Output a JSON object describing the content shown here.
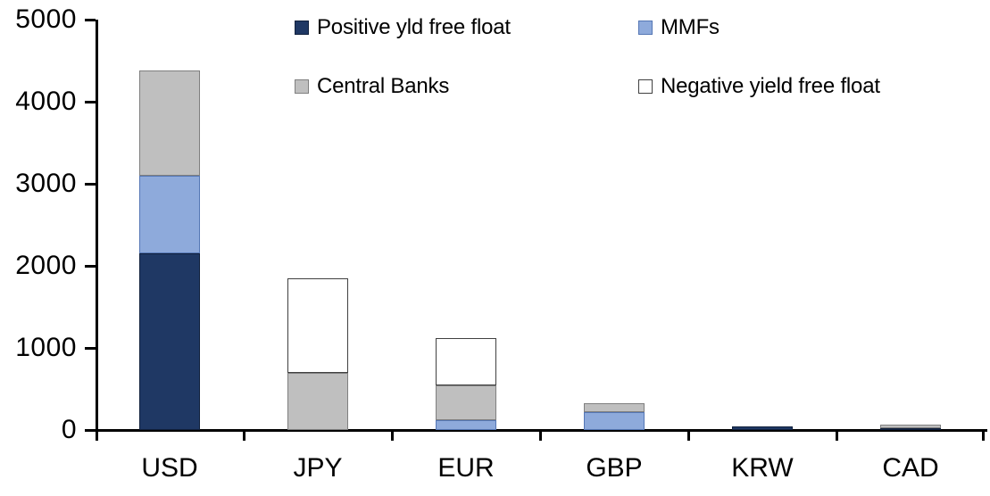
{
  "chart_data": {
    "type": "bar",
    "stacked": true,
    "title": "",
    "xlabel": "",
    "ylabel": "",
    "categories": [
      "USD",
      "JPY",
      "EUR",
      "GBP",
      "KRW",
      "CAD"
    ],
    "series": [
      {
        "name": "Positive yld free float",
        "color": "#1F3864",
        "border_color": "#10203C",
        "values": [
          2150,
          0,
          0,
          0,
          40,
          25
        ]
      },
      {
        "name": "MMFs",
        "color": "#8EAADB",
        "border_color": "#5577B5",
        "values": [
          950,
          0,
          115,
          215,
          0,
          0
        ]
      },
      {
        "name": "Central Banks",
        "color": "#BFBFBF",
        "border_color": "#7F7F7F",
        "values": [
          1280,
          700,
          425,
          115,
          0,
          35
        ]
      },
      {
        "name": "Negative yield free float",
        "color": "#FFFFFF",
        "border_color": "#404040",
        "values": [
          0,
          1150,
          580,
          0,
          0,
          0
        ]
      }
    ],
    "totals": [
      4380,
      1850,
      1120,
      330,
      40,
      60
    ],
    "ylim": [
      0,
      5000
    ],
    "yticks": [
      0,
      1000,
      2000,
      3000,
      4000,
      5000
    ],
    "grid": false,
    "legend_position": "top-inside",
    "axis_color": "#000000",
    "text_color": "#000000",
    "background_color": "#FFFFFF"
  }
}
